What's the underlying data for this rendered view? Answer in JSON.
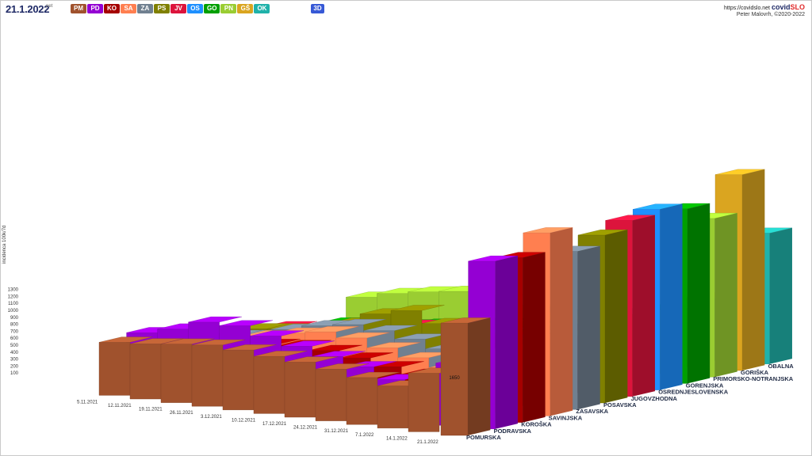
{
  "header": {
    "date": "21.1.2022",
    "weekday": "pet",
    "button_3d": "3D",
    "credit_url": "https://covidslo.net",
    "brand_left": "covid",
    "brand_right": "SLO",
    "author": "Peter Malovrh, ©2020-2022"
  },
  "regions": [
    {
      "code": "PM",
      "name": "POMURSKA",
      "color": "#a0522d"
    },
    {
      "code": "PD",
      "name": "PODRAVSKA",
      "color": "#9400d3"
    },
    {
      "code": "KO",
      "name": "KOROŠKA",
      "color": "#a50000"
    },
    {
      "code": "SA",
      "name": "SAVINJSKA",
      "color": "#ff7f50"
    },
    {
      "code": "ZA",
      "name": "ZASAVSKA",
      "color": "#708090"
    },
    {
      "code": "PS",
      "name": "POSAVSKA",
      "color": "#808000"
    },
    {
      "code": "JV",
      "name": "JUGOVZHODNA",
      "color": "#dc143c"
    },
    {
      "code": "OS",
      "name": "OSREDNJESLOVENSKA",
      "color": "#1e90ff"
    },
    {
      "code": "GO",
      "name": "GORENJSKA",
      "color": "#00a000"
    },
    {
      "code": "PN",
      "name": "PRIMORSKO-NOTRANJSKA",
      "color": "#9acd32"
    },
    {
      "code": "GŠ",
      "name": "GORIŠKA",
      "color": "#daa520"
    },
    {
      "code": "OK",
      "name": "OBALNA",
      "color": "#20b2aa"
    }
  ],
  "chart_data": {
    "type": "bar",
    "ylabel": "incidenca 100k/7d",
    "yticks": [
      100,
      200,
      300,
      400,
      500,
      600,
      700,
      800,
      900,
      1000,
      1100,
      1200,
      1300
    ],
    "dates": [
      "5.11.2021",
      "12.11.2021",
      "19.11.2021",
      "26.11.2021",
      "3.12.2021",
      "10.12.2021",
      "17.12.2021",
      "24.12.2021",
      "31.12.2021",
      "7.1.2022",
      "14.1.2022",
      "21.1.2022"
    ],
    "series": [
      {
        "name": "POMURSKA",
        "values": [
          780,
          810,
          860,
          900,
          880,
          840,
          810,
          760,
          690,
          620,
          860,
          1650
        ]
      },
      {
        "name": "PODRAVSKA",
        "values": [
          850,
          960,
          1120,
          1120,
          1020,
          920,
          820,
          720,
          580,
          540,
          940,
          2537
        ]
      },
      {
        "name": "KOROŠKA",
        "values": [
          600,
          640,
          700,
          760,
          800,
          780,
          720,
          640,
          580,
          640,
          1100,
          2567
        ]
      },
      {
        "name": "SAVINJSKA",
        "values": [
          560,
          600,
          760,
          860,
          940,
          900,
          800,
          700,
          600,
          560,
          1000,
          2935
        ]
      },
      {
        "name": "ZASAVSKA",
        "values": [
          560,
          620,
          780,
          900,
          980,
          940,
          860,
          760,
          660,
          640,
          1100,
          2609
        ]
      },
      {
        "name": "POSAVSKA",
        "values": [
          580,
          640,
          720,
          860,
          1080,
          1200,
          1040,
          860,
          700,
          620,
          1080,
          2853
        ]
      },
      {
        "name": "JUGOVZHODNA",
        "values": [
          520,
          560,
          600,
          700,
          800,
          860,
          820,
          780,
          700,
          640,
          1180,
          3080
        ]
      },
      {
        "name": "OSREDNJESLOVENSKA",
        "values": [
          360,
          400,
          460,
          540,
          620,
          660,
          700,
          720,
          760,
          820,
          1300,
          3255
        ]
      },
      {
        "name": "GORENJSKA",
        "values": [
          380,
          420,
          480,
          560,
          640,
          700,
          720,
          740,
          760,
          800,
          1300,
          3241
        ]
      },
      {
        "name": "PRIMORSKO-NOTRANJSKA",
        "values": [
          760,
          900,
          1000,
          1080,
          980,
          860,
          760,
          700,
          700,
          760,
          1240,
          3029
        ]
      },
      {
        "name": "GORIŠKA",
        "values": [
          440,
          480,
          520,
          560,
          600,
          620,
          640,
          660,
          700,
          760,
          1360,
          3852
        ]
      },
      {
        "name": "OBALNA",
        "values": [
          380,
          420,
          460,
          500,
          540,
          560,
          600,
          640,
          700,
          780,
          1240,
          2649
        ]
      }
    ]
  }
}
